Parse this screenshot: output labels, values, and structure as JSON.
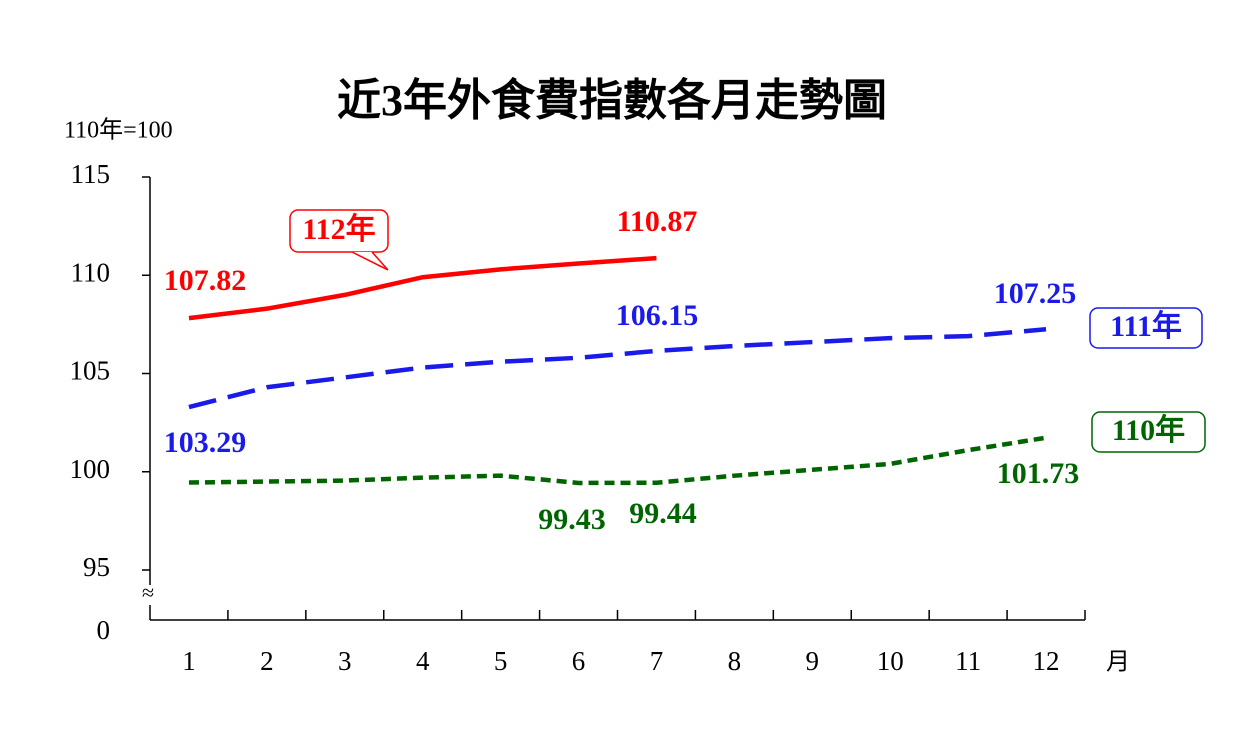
{
  "chart_data": {
    "type": "line",
    "title": "近3年外食費指數各月走勢圖",
    "y_unit_label": "110年=100",
    "x_unit_label": "月",
    "x": [
      1,
      2,
      3,
      4,
      5,
      6,
      7,
      8,
      9,
      10,
      11,
      12
    ],
    "xlim": [
      0.5,
      12.5
    ],
    "ylim": [
      95,
      115
    ],
    "yticks": [
      95,
      100,
      105,
      110,
      115
    ],
    "axis_break": {
      "symbol": "≈",
      "floor_label": "0"
    },
    "series": [
      {
        "name": "112年",
        "color": "#ff0000",
        "dash": "solid",
        "values": [
          107.82,
          108.3,
          109.0,
          109.9,
          110.3,
          110.6,
          110.87,
          null,
          null,
          null,
          null,
          null
        ]
      },
      {
        "name": "111年",
        "color": "#1a1aeb",
        "dash": "long",
        "values": [
          103.29,
          104.3,
          104.8,
          105.3,
          105.6,
          105.8,
          106.15,
          106.4,
          106.6,
          106.8,
          106.9,
          107.25
        ]
      },
      {
        "name": "110年",
        "color": "#006400",
        "dash": "short",
        "values": [
          99.45,
          99.5,
          99.55,
          99.7,
          99.8,
          99.43,
          99.44,
          99.8,
          100.1,
          100.4,
          101.1,
          101.73
        ]
      }
    ]
  }
}
